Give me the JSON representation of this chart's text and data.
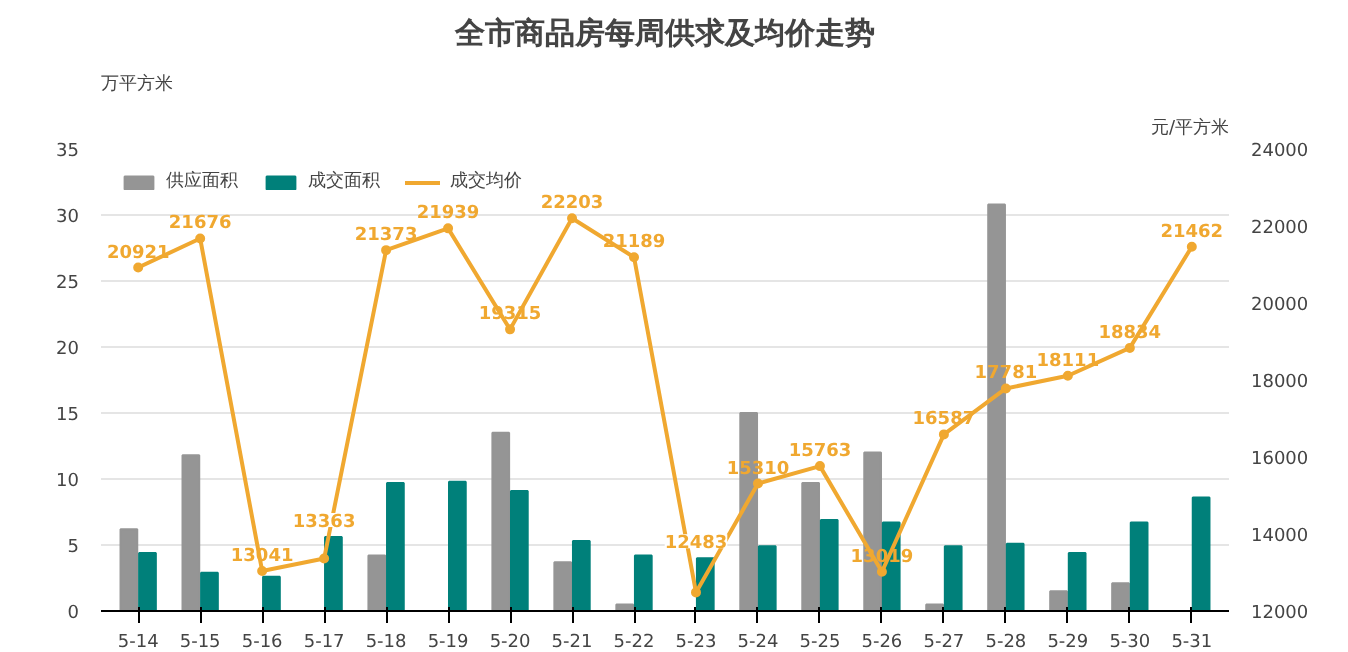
{
  "chart_data": {
    "type": "bar",
    "title": "全市商品房每周供求及均价走势",
    "ylabel": "万平方米",
    "y2label": "元/平方米",
    "categories": [
      "5-14",
      "5-15",
      "5-16",
      "5-17",
      "5-18",
      "5-19",
      "5-20",
      "5-21",
      "5-22",
      "5-23",
      "5-24",
      "5-25",
      "5-26",
      "5-27",
      "5-28",
      "5-29",
      "5-30",
      "5-31"
    ],
    "series": [
      {
        "name": "供应面积",
        "color": "#959595",
        "values": [
          6.2,
          11.8,
          0,
          0,
          4.2,
          0,
          13.5,
          3.7,
          0.5,
          0,
          15.0,
          9.7,
          12.0,
          0.5,
          30.8,
          1.5,
          2.1,
          0
        ]
      },
      {
        "name": "成交面积",
        "color": "#00807a",
        "values": [
          4.4,
          2.9,
          2.6,
          5.6,
          9.7,
          9.8,
          9.1,
          5.3,
          4.2,
          4.0,
          4.9,
          6.9,
          6.7,
          4.9,
          5.1,
          4.4,
          6.7,
          8.6
        ]
      },
      {
        "name": "成交均价",
        "type": "line",
        "axis": "y2",
        "color": "#f0a830",
        "marker": "circle",
        "data_labels": true,
        "values": [
          20921,
          21676,
          13041,
          13363,
          21373,
          21939,
          19315,
          22203,
          21189,
          12483,
          15310,
          15763,
          13019,
          16587,
          17781,
          18111,
          18834,
          21462
        ]
      }
    ],
    "ylim": [
      0,
      35
    ],
    "yticks": [
      0,
      5,
      10,
      15,
      20,
      25,
      30,
      35
    ],
    "y2lim": [
      12000,
      24000
    ],
    "y2ticks": [
      12000,
      14000,
      16000,
      18000,
      20000,
      22000,
      24000
    ],
    "grid": "y",
    "legend": "top left"
  }
}
